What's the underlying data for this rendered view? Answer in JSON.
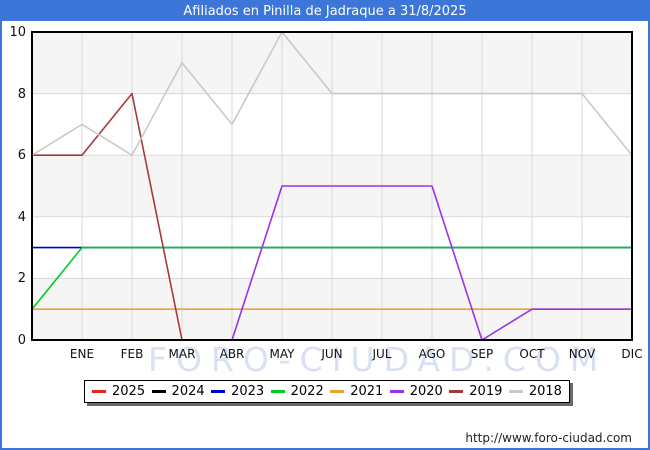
{
  "header": {
    "title": "Afiliados en Pinilla de Jadraque a 31/8/2025"
  },
  "watermark": "FORO-CIUDAD.COM",
  "footer": {
    "url": "http://www.foro-ciudad.com"
  },
  "colors": {
    "accent_blue": "#3b76d8",
    "plot_band_gray": "#f5f5f5",
    "plot_band_white": "#ffffff",
    "gridline": "#d9d9d9",
    "axis_frame": "#000000"
  },
  "chart_data": {
    "type": "line",
    "title": "Afiliados en Pinilla de Jadraque a 31/8/2025",
    "xlabel": "",
    "ylabel": "",
    "x_categories": [
      "ENE",
      "FEB",
      "MAR",
      "ABR",
      "MAY",
      "JUN",
      "JUL",
      "AGO",
      "SEP",
      "OCT",
      "NOV",
      "DIC"
    ],
    "ylim": [
      0,
      10
    ],
    "yticks": [
      0,
      2,
      4,
      6,
      8,
      10
    ],
    "grid": true,
    "legend_position": "bottom",
    "series": [
      {
        "name": "2025",
        "color": "#e52620",
        "axis_start": null,
        "values": [
          null,
          null,
          null,
          null,
          null,
          null,
          null,
          null,
          null,
          null,
          null,
          null
        ]
      },
      {
        "name": "2024",
        "color": "#000000",
        "axis_start": null,
        "values": [
          null,
          null,
          null,
          null,
          null,
          null,
          null,
          null,
          null,
          null,
          null,
          null
        ]
      },
      {
        "name": "2023",
        "color": "#0000cc",
        "axis_start": 3,
        "values": [
          3,
          3,
          3,
          3,
          3,
          3,
          3,
          3,
          3,
          3,
          3,
          3
        ]
      },
      {
        "name": "2022",
        "color": "#00cc22",
        "axis_start": 1,
        "values": [
          3,
          3,
          3,
          3,
          3,
          3,
          3,
          3,
          3,
          3,
          3,
          3
        ]
      },
      {
        "name": "2021",
        "color": "#eca32e",
        "axis_start": 1,
        "values": [
          1,
          1,
          1,
          1,
          1,
          1,
          1,
          1,
          1,
          1,
          1,
          1
        ]
      },
      {
        "name": "2020",
        "color": "#9933e6",
        "axis_start": null,
        "values": [
          null,
          null,
          null,
          0,
          5,
          5,
          5,
          5,
          0,
          1,
          1,
          1
        ]
      },
      {
        "name": "2019",
        "color": "#a33b3b",
        "axis_start": 6,
        "values": [
          6,
          8,
          0,
          null,
          null,
          null,
          null,
          null,
          null,
          null,
          null,
          null
        ]
      },
      {
        "name": "2018",
        "color": "#c9c9c9",
        "axis_start": 6,
        "values": [
          7,
          6,
          9,
          7,
          10,
          8,
          8,
          8,
          8,
          8,
          8,
          6
        ]
      }
    ]
  }
}
